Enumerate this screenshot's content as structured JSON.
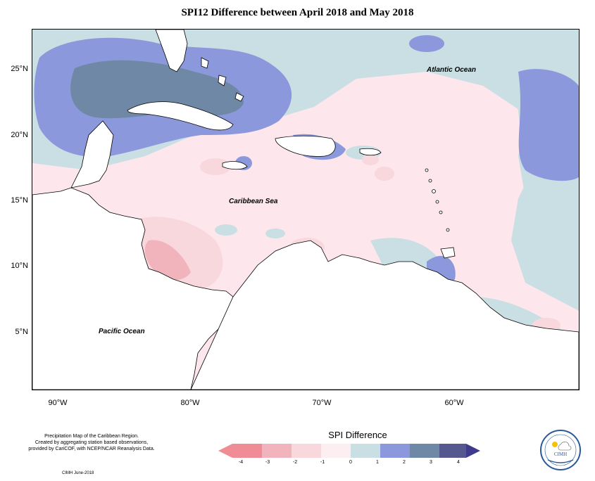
{
  "title": "SPI12 Difference between April 2018 and May 2018",
  "map": {
    "y_ticks": [
      "25°N",
      "20°N",
      "15°N",
      "10°N",
      "5°N"
    ],
    "x_ticks": [
      "90°W",
      "80°W",
      "70°W",
      "60°W"
    ],
    "labels": {
      "atlantic": "Atlantic Ocean",
      "caribbean": "Caribbean Sea",
      "pacific": "Pacific Ocean"
    }
  },
  "legend": {
    "title": "SPI Difference",
    "ticks": [
      "-4",
      "-3",
      "-2",
      "-1",
      "0",
      "1",
      "2",
      "3",
      "4"
    ],
    "colors": [
      "#f08c96",
      "#f2b4bc",
      "#f8d7dd",
      "#fdeef1",
      "#c9dfe4",
      "#8b99dc",
      "#6f88a6",
      "#54588f",
      "#3f3b8c"
    ]
  },
  "caption": {
    "line1": "Precipitation Map of the Caribbean Region.",
    "line2": "Created by aggregating station based observations,",
    "line3": "provided by CariCOF, with NCEP/NCAR Reanalysis Data."
  },
  "credit": "CIMH June-2018",
  "logo": {
    "text": "CIMH"
  }
}
